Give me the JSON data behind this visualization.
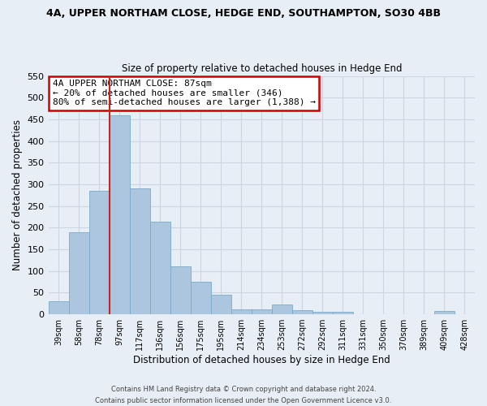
{
  "title": "4A, UPPER NORTHAM CLOSE, HEDGE END, SOUTHAMPTON, SO30 4BB",
  "subtitle": "Size of property relative to detached houses in Hedge End",
  "xlabel": "Distribution of detached houses by size in Hedge End",
  "ylabel": "Number of detached properties",
  "footer_line1": "Contains HM Land Registry data © Crown copyright and database right 2024.",
  "footer_line2": "Contains public sector information licensed under the Open Government Licence v3.0.",
  "bin_labels": [
    "39sqm",
    "58sqm",
    "78sqm",
    "97sqm",
    "117sqm",
    "136sqm",
    "156sqm",
    "175sqm",
    "195sqm",
    "214sqm",
    "234sqm",
    "253sqm",
    "272sqm",
    "292sqm",
    "311sqm",
    "331sqm",
    "350sqm",
    "370sqm",
    "389sqm",
    "409sqm",
    "428sqm"
  ],
  "bar_values": [
    30,
    190,
    285,
    460,
    290,
    213,
    110,
    75,
    46,
    12,
    12,
    22,
    9,
    6,
    5,
    0,
    0,
    0,
    0,
    7,
    0
  ],
  "bar_color": "#adc6df",
  "bar_edge_color": "#7aaac8",
  "ylim": [
    0,
    550
  ],
  "yticks": [
    0,
    50,
    100,
    150,
    200,
    250,
    300,
    350,
    400,
    450,
    500,
    550
  ],
  "red_line_bin_index": 3,
  "annotation_title": "4A UPPER NORTHAM CLOSE: 87sqm",
  "annotation_line1": "← 20% of detached houses are smaller (346)",
  "annotation_line2": "80% of semi-detached houses are larger (1,388) →",
  "annotation_box_color": "#ffffff",
  "annotation_box_edge_color": "#cc0000",
  "grid_color": "#cdd5e0",
  "background_color": "#e8eef5"
}
